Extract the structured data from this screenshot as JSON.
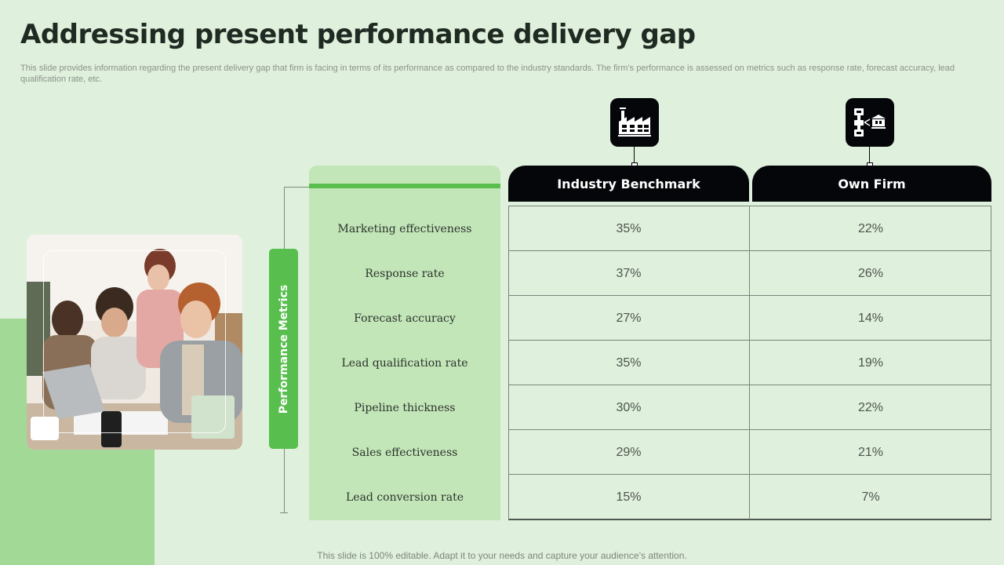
{
  "title": "Addressing present performance delivery gap",
  "subtitle": "This slide provides information regarding the present delivery gap that firm is facing in terms of its performance as compared to the industry standards. The firm’s performance is assessed on metrics such as response rate, forecast accuracy, lead qualification rate, etc.",
  "side_label": "Performance Metrics",
  "columns": {
    "benchmark": {
      "label": "Industry Benchmark",
      "icon": "factory-icon"
    },
    "own": {
      "label": "Own Firm",
      "icon": "supply-chain-icon"
    }
  },
  "rows": [
    {
      "metric": "Marketing effectiveness",
      "benchmark": "35%",
      "own": "22%"
    },
    {
      "metric": "Response rate",
      "benchmark": "37%",
      "own": "26%"
    },
    {
      "metric": "Forecast accuracy",
      "benchmark": "27%",
      "own": "14%"
    },
    {
      "metric": "Lead qualification rate",
      "benchmark": "35%",
      "own": "19%"
    },
    {
      "metric": "Pipeline thickness",
      "benchmark": "30%",
      "own": "22%"
    },
    {
      "metric": "Sales effectiveness",
      "benchmark": "29%",
      "own": "21%"
    },
    {
      "metric": "Lead conversion rate",
      "benchmark": "15%",
      "own": "7%"
    }
  ],
  "footer": "This slide is 100% editable. Adapt it to your needs and capture your audience’s attention.",
  "colors": {
    "accent_green": "#58bf4e",
    "light_green": "#c3e6b9",
    "header_black": "#05060a",
    "background": "#dff0dc"
  }
}
